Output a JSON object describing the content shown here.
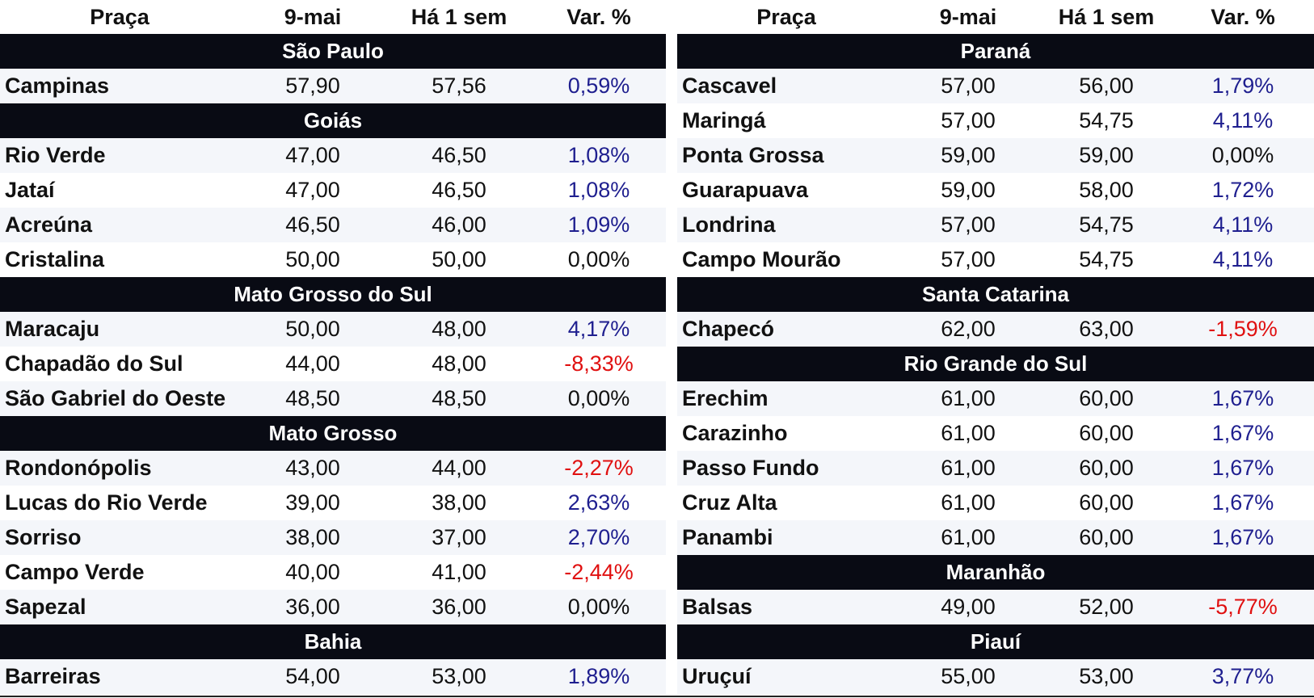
{
  "header": {
    "col_praca": "Praça",
    "col_date": "9-mai",
    "col_prev": "Há 1 sem",
    "col_var": "Var. %"
  },
  "left": {
    "sections": [
      {
        "name": "São Paulo",
        "rows": [
          {
            "praca": "Campinas",
            "d1": "57,90",
            "d2": "57,56",
            "var": "0,59%",
            "sign": "pos"
          }
        ]
      },
      {
        "name": "Goiás",
        "rows": [
          {
            "praca": "Rio Verde",
            "d1": "47,00",
            "d2": "46,50",
            "var": "1,08%",
            "sign": "pos"
          },
          {
            "praca": "Jataí",
            "d1": "47,00",
            "d2": "46,50",
            "var": "1,08%",
            "sign": "pos"
          },
          {
            "praca": "Acreúna",
            "d1": "46,50",
            "d2": "46,00",
            "var": "1,09%",
            "sign": "pos"
          },
          {
            "praca": "Cristalina",
            "d1": "50,00",
            "d2": "50,00",
            "var": "0,00%",
            "sign": "zero"
          }
        ]
      },
      {
        "name": "Mato Grosso do Sul",
        "rows": [
          {
            "praca": "Maracaju",
            "d1": "50,00",
            "d2": "48,00",
            "var": "4,17%",
            "sign": "pos"
          },
          {
            "praca": "Chapadão do Sul",
            "d1": "44,00",
            "d2": "48,00",
            "var": "-8,33%",
            "sign": "neg"
          },
          {
            "praca": "São Gabriel do Oeste",
            "d1": "48,50",
            "d2": "48,50",
            "var": "0,00%",
            "sign": "zero"
          }
        ]
      },
      {
        "name": "Mato Grosso",
        "rows": [
          {
            "praca": "Rondonópolis",
            "d1": "43,00",
            "d2": "44,00",
            "var": "-2,27%",
            "sign": "neg"
          },
          {
            "praca": "Lucas do Rio Verde",
            "d1": "39,00",
            "d2": "38,00",
            "var": "2,63%",
            "sign": "pos"
          },
          {
            "praca": "Sorriso",
            "d1": "38,00",
            "d2": "37,00",
            "var": "2,70%",
            "sign": "pos"
          },
          {
            "praca": "Campo Verde",
            "d1": "40,00",
            "d2": "41,00",
            "var": "-2,44%",
            "sign": "neg"
          },
          {
            "praca": "Sapezal",
            "d1": "36,00",
            "d2": "36,00",
            "var": "0,00%",
            "sign": "zero"
          }
        ]
      },
      {
        "name": "Bahia",
        "rows": [
          {
            "praca": "Barreiras",
            "d1": "54,00",
            "d2": "53,00",
            "var": "1,89%",
            "sign": "pos"
          }
        ]
      }
    ]
  },
  "right": {
    "sections": [
      {
        "name": "Paraná",
        "rows": [
          {
            "praca": "Cascavel",
            "d1": "57,00",
            "d2": "56,00",
            "var": "1,79%",
            "sign": "pos"
          },
          {
            "praca": "Maringá",
            "d1": "57,00",
            "d2": "54,75",
            "var": "4,11%",
            "sign": "pos"
          },
          {
            "praca": "Ponta Grossa",
            "d1": "59,00",
            "d2": "59,00",
            "var": "0,00%",
            "sign": "zero"
          },
          {
            "praca": "Guarapuava",
            "d1": "59,00",
            "d2": "58,00",
            "var": "1,72%",
            "sign": "pos"
          },
          {
            "praca": "Londrina",
            "d1": "57,00",
            "d2": "54,75",
            "var": "4,11%",
            "sign": "pos"
          },
          {
            "praca": "Campo Mourão",
            "d1": "57,00",
            "d2": "54,75",
            "var": "4,11%",
            "sign": "pos"
          }
        ]
      },
      {
        "name": "Santa Catarina",
        "rows": [
          {
            "praca": "Chapecó",
            "d1": "62,00",
            "d2": "63,00",
            "var": "-1,59%",
            "sign": "neg"
          }
        ]
      },
      {
        "name": "Rio Grande do Sul",
        "rows": [
          {
            "praca": "Erechim",
            "d1": "61,00",
            "d2": "60,00",
            "var": "1,67%",
            "sign": "pos"
          },
          {
            "praca": "Carazinho",
            "d1": "61,00",
            "d2": "60,00",
            "var": "1,67%",
            "sign": "pos"
          },
          {
            "praca": "Passo Fundo",
            "d1": "61,00",
            "d2": "60,00",
            "var": "1,67%",
            "sign": "pos"
          },
          {
            "praca": "Cruz Alta",
            "d1": "61,00",
            "d2": "60,00",
            "var": "1,67%",
            "sign": "pos"
          },
          {
            "praca": "Panambi",
            "d1": "61,00",
            "d2": "60,00",
            "var": "1,67%",
            "sign": "pos"
          }
        ]
      },
      {
        "name": "Maranhão",
        "rows": [
          {
            "praca": "Balsas",
            "d1": "49,00",
            "d2": "52,00",
            "var": "-5,77%",
            "sign": "neg"
          }
        ]
      },
      {
        "name": "Piauí",
        "rows": [
          {
            "praca": "Uruçuí",
            "d1": "55,00",
            "d2": "53,00",
            "var": "3,77%",
            "sign": "pos"
          }
        ]
      }
    ]
  },
  "colors": {
    "section_bg": "#090b14",
    "positive": "#1f1f8f",
    "negative": "#e01010",
    "neutral": "#111111",
    "row_alt": "#f4f6fa"
  }
}
